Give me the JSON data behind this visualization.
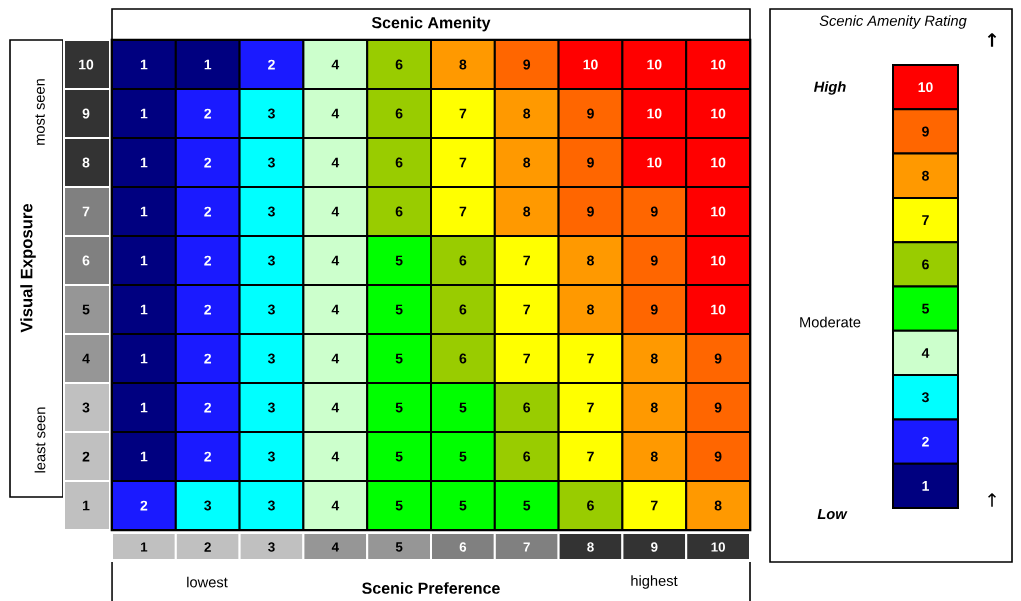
{
  "chart_data": {
    "type": "heatmap",
    "title": "Scenic Amenity",
    "xlabel": "Scenic Preference",
    "ylabel": "Visual Exposure",
    "clabel": "Scenic Amenity Rating",
    "categories": [
      "1",
      "2",
      "3",
      "4",
      "5",
      "6",
      "7",
      "8",
      "9",
      "10"
    ],
    "y_categories": [
      "10",
      "9",
      "8",
      "7",
      "6",
      "5",
      "4",
      "3",
      "2",
      "1"
    ],
    "cells": [
      [
        1,
        1,
        2,
        4,
        6,
        8,
        9,
        10,
        10,
        10
      ],
      [
        1,
        2,
        3,
        4,
        6,
        7,
        8,
        9,
        10,
        10
      ],
      [
        1,
        2,
        3,
        4,
        6,
        7,
        8,
        9,
        10,
        10
      ],
      [
        1,
        2,
        3,
        4,
        6,
        7,
        8,
        9,
        9,
        10
      ],
      [
        1,
        2,
        3,
        4,
        5,
        6,
        7,
        8,
        9,
        10
      ],
      [
        1,
        2,
        3,
        4,
        5,
        6,
        7,
        8,
        9,
        10
      ],
      [
        1,
        2,
        3,
        4,
        5,
        6,
        7,
        7,
        8,
        9
      ],
      [
        1,
        2,
        3,
        4,
        5,
        5,
        6,
        7,
        8,
        9
      ],
      [
        1,
        2,
        3,
        4,
        5,
        5,
        6,
        7,
        8,
        9
      ],
      [
        2,
        3,
        3,
        4,
        5,
        5,
        5,
        6,
        7,
        8
      ]
    ],
    "cticks": [
      1,
      2,
      3,
      4,
      5,
      6,
      7,
      8,
      9,
      10
    ],
    "colors": [
      "#000080",
      "#1a1aff",
      "#00ffff",
      "#ccffcc",
      "#00ff00",
      "#99cc00",
      "#ffff00",
      "#ff9900",
      "#ff6600",
      "#ff0000"
    ],
    "data_labels": true,
    "annotations": [
      "lowest",
      "highest",
      "most seen",
      "least seen",
      "High",
      "Moderate",
      "Low",
      "↑",
      "↑"
    ]
  }
}
